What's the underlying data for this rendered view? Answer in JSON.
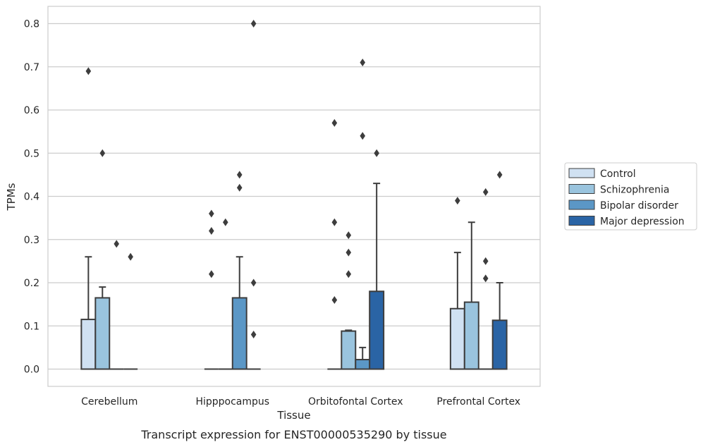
{
  "caption": "Transcript expression for ENST00000535290 by tissue",
  "chart_data": {
    "type": "box",
    "xlabel": "Tissue",
    "ylabel": "TPMs",
    "ylim": [
      -0.04,
      0.84
    ],
    "yticks": [
      "0.0",
      "0.1",
      "0.2",
      "0.3",
      "0.4",
      "0.5",
      "0.6",
      "0.7",
      "0.8"
    ],
    "grid": "horizontal",
    "legend_position": "right",
    "categories": [
      "Cerebellum",
      "Hipppocampus",
      "Orbitofontal Cortex",
      "Prefrontal Cortex"
    ],
    "series": [
      {
        "name": "Control",
        "color": "#d0e1f2",
        "boxes": [
          {
            "q1": 0,
            "q3": 0.115,
            "whisker_high": 0.26,
            "outliers": [
              0.69
            ]
          },
          {
            "q1": 0,
            "q3": 0,
            "whisker_high": 0,
            "outliers": [
              0.36,
              0.32,
              0.22
            ]
          },
          {
            "q1": 0,
            "q3": 0,
            "whisker_high": 0,
            "outliers": [
              0.57,
              0.34,
              0.16
            ]
          },
          {
            "q1": 0,
            "q3": 0.14,
            "whisker_high": 0.27,
            "outliers": [
              0.39
            ]
          }
        ]
      },
      {
        "name": "Schizophrenia",
        "color": "#9ac4de",
        "boxes": [
          {
            "q1": 0,
            "q3": 0.165,
            "whisker_high": 0.19,
            "outliers": [
              0.5
            ]
          },
          {
            "q1": 0,
            "q3": 0,
            "whisker_high": 0,
            "outliers": [
              0.34
            ]
          },
          {
            "q1": 0,
            "q3": 0.088,
            "whisker_high": 0.09,
            "outliers": [
              0.31,
              0.27,
              0.22
            ]
          },
          {
            "q1": 0,
            "q3": 0.155,
            "whisker_high": 0.34,
            "outliers": []
          }
        ]
      },
      {
        "name": "Bipolar disorder",
        "color": "#5b97c6",
        "boxes": [
          {
            "q1": 0,
            "q3": 0,
            "whisker_high": 0,
            "outliers": [
              0.29
            ]
          },
          {
            "q1": 0,
            "q3": 0.165,
            "whisker_high": 0.26,
            "outliers": [
              0.45,
              0.42
            ]
          },
          {
            "q1": 0,
            "q3": 0.022,
            "whisker_high": 0.05,
            "outliers": [
              0.71,
              0.54
            ]
          },
          {
            "q1": 0,
            "q3": 0,
            "whisker_high": 0,
            "outliers": [
              0.41,
              0.25,
              0.21
            ]
          }
        ]
      },
      {
        "name": "Major depression",
        "color": "#2a64a5",
        "boxes": [
          {
            "q1": 0,
            "q3": 0,
            "whisker_high": 0,
            "outliers": [
              0.26
            ]
          },
          {
            "q1": 0,
            "q3": 0,
            "whisker_high": 0,
            "outliers": [
              0.8,
              0.2,
              0.08
            ]
          },
          {
            "q1": 0,
            "q3": 0.18,
            "whisker_high": 0.43,
            "outliers": [
              0.5
            ]
          },
          {
            "q1": 0,
            "q3": 0.113,
            "whisker_high": 0.2,
            "outliers": [
              0.45
            ]
          }
        ]
      }
    ]
  }
}
